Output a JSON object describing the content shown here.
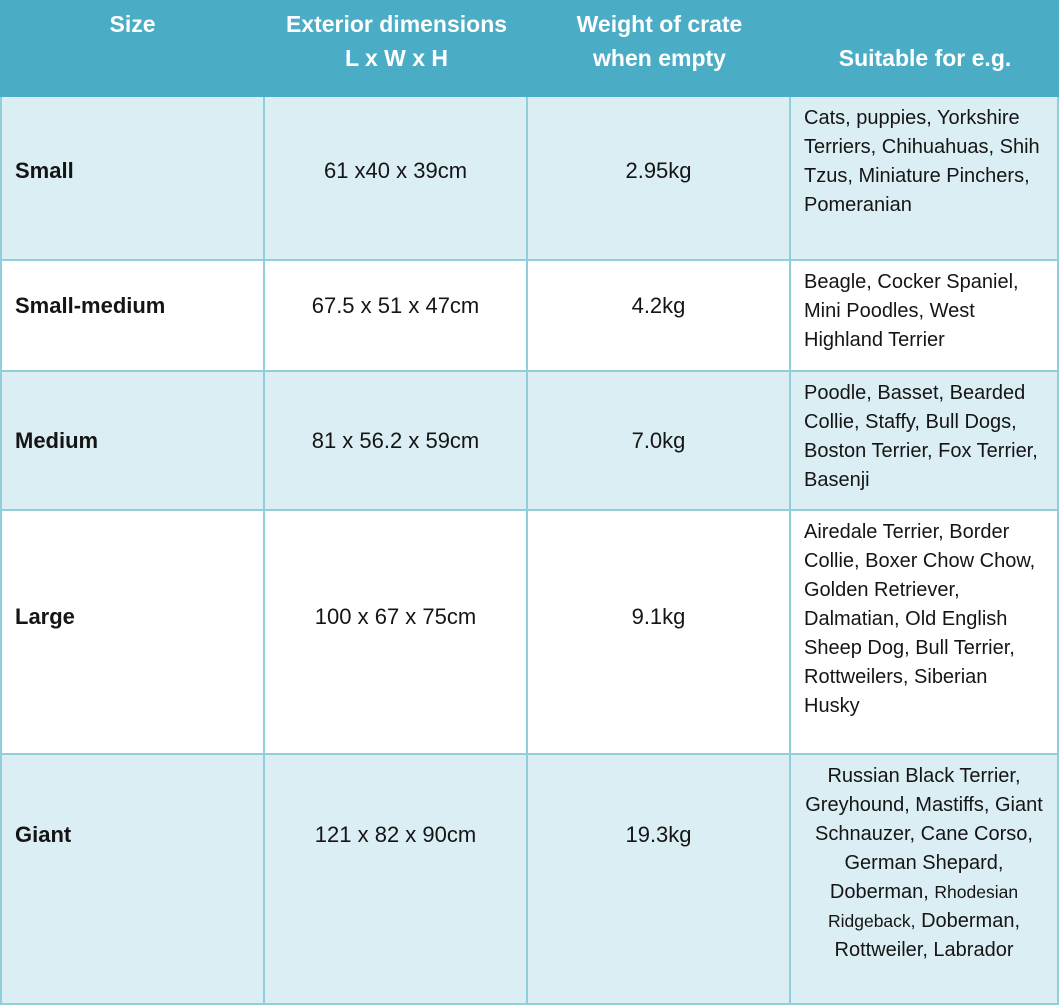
{
  "colors": {
    "header_background": "#4BACC6",
    "header_text": "#FFFFFF",
    "alt_row_background": "#DAEEF3",
    "row_background": "#FFFFFF",
    "border": "#92CDDC",
    "body_text": "#151515"
  },
  "table": {
    "header": {
      "size": "Size",
      "dimensions_line1": "Exterior dimensions",
      "dimensions_line2": "L x W x H",
      "weight_line1": "Weight of crate",
      "weight_line2": "when empty",
      "suitable": "Suitable for e.g."
    },
    "rows": [
      {
        "size": "Small",
        "dimensions": "61 x40 x 39cm",
        "weight": "2.95kg",
        "suitable": "Cats, puppies, Yorkshire Terriers, Chihuahuas, Shih Tzus, Miniature Pinchers, Pomeranian"
      },
      {
        "size": "Small-medium",
        "dimensions": "67.5 x 51 x 47cm",
        "weight": "4.2kg",
        "suitable": "Beagle, Cocker Spaniel, Mini Poodles, West Highland Terrier"
      },
      {
        "size": "Medium",
        "dimensions": "81 x 56.2 x 59cm",
        "weight": "7.0kg",
        "suitable": "Poodle, Basset, Bearded Collie, Staffy, Bull Dogs, Boston Terrier, Fox Terrier, Basenji"
      },
      {
        "size": "Large",
        "dimensions": "100 x 67 x 75cm",
        "weight": "9.1kg",
        "suitable": "Airedale Terrier, Border Collie, Boxer Chow Chow, Golden Retriever, Dalmatian, Old English Sheep Dog, Bull Terrier, Rottweilers, Siberian Husky"
      },
      {
        "size": "Giant",
        "dimensions": "121 x 82 x 90cm",
        "weight": "19.3kg",
        "suitable": "Russian Black Terrier, Greyhound, Mastiffs, Giant Schnauzer, Cane Corso, German Shepard, Doberman, Rhodesian Ridgeback, Doberman, Rottweiler, Labrador",
        "suitable_segments": [
          "Russian Black Terrier, Greyhound, Mastiffs, Giant Schnauzer, Cane Corso, German Shepard, Doberman, ",
          "Rhodesian Ridgeback,",
          " Doberman, Rottweiler, Labrador"
        ]
      }
    ]
  }
}
